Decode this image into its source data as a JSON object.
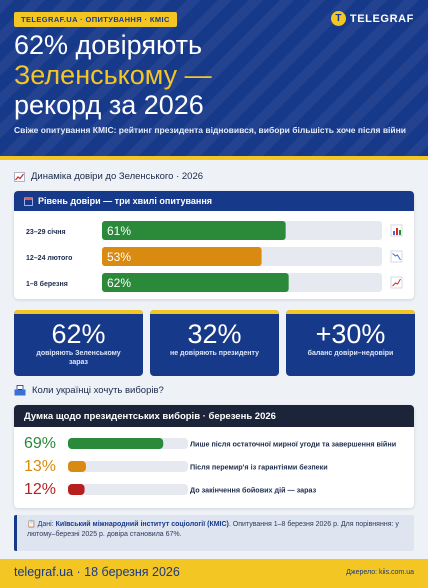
{
  "header": {
    "tagline": "TELEGRAF.UA · ОПИТУВАННЯ · КМІС",
    "logo_mark": "T",
    "logo_text": "TELEGRAF",
    "headline_line1": "62% довіряють",
    "headline_line2": "Зеленському —",
    "headline_line3": "рекорд за 2026",
    "subhead": "Свіже опитування КМІС: рейтинг президента відновився, вибори більшість хоче після війни"
  },
  "section_trust": {
    "icon": "chart-up-icon",
    "title": "Динаміка довіри до Зеленського · 2026",
    "panel_title": "Рівень довіри — три хвилі опитування"
  },
  "stats": [
    {
      "value": "62%",
      "label": "довіряють Зеленському зараз"
    },
    {
      "value": "32%",
      "label": "не довіряють президенту"
    },
    {
      "value": "+30%",
      "label": "баланс довіри–недовіри"
    }
  ],
  "section_elections": {
    "icon": "ballot-box-icon",
    "title": "Коли українці хочуть виборів?",
    "panel_title": "Думка щодо президентських виборів · березень 2026"
  },
  "note": {
    "lead": "Дані:",
    "org": "Київський міжнародний інститут соціології (КМІС)",
    "text": ". Опитування 1–8 березня 2026 р. Для порівняння: у лютому–березні 2025 р. довіра становила 67%."
  },
  "footer": {
    "site_date": "telegraf.ua · 18 березня 2026",
    "source": "Джерело: kiis.com.ua"
  },
  "colors": {
    "brand_blue": "#17398a",
    "accent_yellow": "#f3c623",
    "green": "#2a8a3a",
    "orange": "#d98a10",
    "red": "#b81f1f",
    "track": "#e6e9ef"
  },
  "chart_data": [
    {
      "type": "bar",
      "orientation": "horizontal",
      "title": "Рівень довіри — три хвилі опитування",
      "categories": [
        "23–29 січня",
        "12–24 лютого",
        "1–8 березня"
      ],
      "values": [
        61,
        53,
        62
      ],
      "value_labels": [
        "61%",
        "53%",
        "62%"
      ],
      "bar_colors": [
        "#2a8a3a",
        "#d98a10",
        "#2a8a3a"
      ],
      "trend_icons": [
        "bar-chart-icon",
        "chart-down-icon",
        "chart-up-icon"
      ],
      "xlim": [
        0,
        100
      ],
      "grid": false
    },
    {
      "type": "bar",
      "orientation": "horizontal",
      "title": "Думка щодо президентських виборів · березень 2026",
      "categories": [
        "Лише після остаточної мирної угоди та завершення війни",
        "Після перемир'я із гарантіями безпеки",
        "До закінчення бойових дій — зараз"
      ],
      "values": [
        69,
        13,
        12
      ],
      "value_labels": [
        "69%",
        "13%",
        "12%"
      ],
      "bar_colors": [
        "#2a8a3a",
        "#d98a10",
        "#b81f1f"
      ],
      "xlim": [
        0,
        100
      ],
      "grid": false
    }
  ]
}
